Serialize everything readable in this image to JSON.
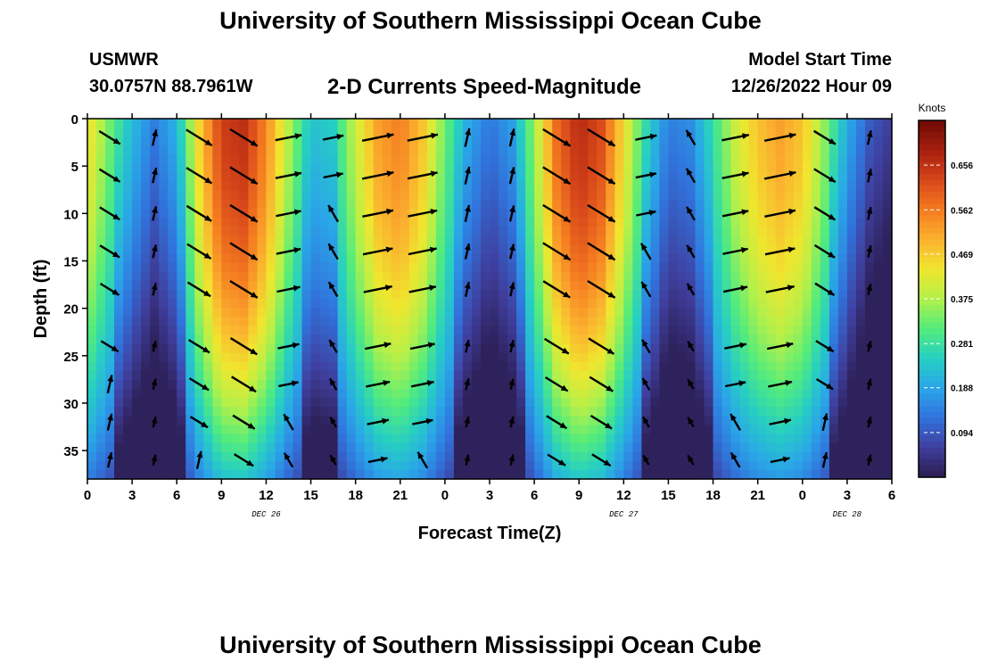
{
  "header": {
    "title": "University of Southern Mississippi Ocean Cube",
    "station": "USMWR",
    "location": "30.0757N  88.7961W",
    "plot_title": "2-D Currents Speed-Magnitude",
    "model_start_label": "Model Start Time",
    "model_start_value": "12/26/2022 Hour 09"
  },
  "footer": {
    "title": "University of Southern Mississippi Ocean Cube"
  },
  "chart_data": {
    "type": "heatmap",
    "title": "2-D Currents Speed-Magnitude",
    "xlabel": "Forecast Time(Z)",
    "ylabel": "Depth (ft)",
    "x_hours_range": [
      0,
      54
    ],
    "y_range": [
      0,
      38
    ],
    "y_inverted": true,
    "x_tick_labels": [
      "0",
      "3",
      "6",
      "9",
      "12",
      "15",
      "18",
      "21",
      "0",
      "3",
      "6",
      "9",
      "12",
      "15",
      "18",
      "21",
      "0",
      "3",
      "6"
    ],
    "y_ticks": [
      0,
      5,
      10,
      15,
      20,
      25,
      30,
      35
    ],
    "date_labels": [
      {
        "label": "DEC 26",
        "hour": 12
      },
      {
        "label": "DEC 27",
        "hour": 36
      },
      {
        "label": "DEC 28",
        "hour": 51
      }
    ],
    "colorbar": {
      "unit": "Knots",
      "ticks": [
        "0.656",
        "0.562",
        "0.469",
        "0.375",
        "0.281",
        "0.188",
        "0.094"
      ],
      "range": [
        0,
        0.75
      ],
      "colors": [
        "#2b1c4f",
        "#3f3f9e",
        "#3173dc",
        "#2aa6e8",
        "#27cfc2",
        "#54ec7b",
        "#b3f04a",
        "#f0e62e",
        "#fbb12f",
        "#f47a20",
        "#d7461a",
        "#a61f0f",
        "#6e0a05"
      ]
    },
    "hours": [
      0,
      1.5,
      3,
      4.5,
      6,
      7.5,
      9,
      10.5,
      12,
      13.5,
      15,
      16.5,
      18,
      19.5,
      21,
      22.5,
      24,
      25.5,
      27,
      28.5,
      30,
      31.5,
      33,
      34.5,
      36,
      37.5,
      39,
      40.5,
      42,
      43.5,
      45,
      46.5,
      48,
      49.5,
      51,
      52.5,
      54
    ],
    "surface_speed_knots": [
      0.45,
      0.33,
      0.22,
      0.14,
      0.21,
      0.46,
      0.64,
      0.66,
      0.55,
      0.38,
      0.23,
      0.25,
      0.4,
      0.52,
      0.56,
      0.48,
      0.33,
      0.2,
      0.13,
      0.18,
      0.36,
      0.58,
      0.67,
      0.62,
      0.45,
      0.27,
      0.14,
      0.16,
      0.28,
      0.4,
      0.48,
      0.52,
      0.48,
      0.35,
      0.2,
      0.1,
      0.06
    ]
  }
}
